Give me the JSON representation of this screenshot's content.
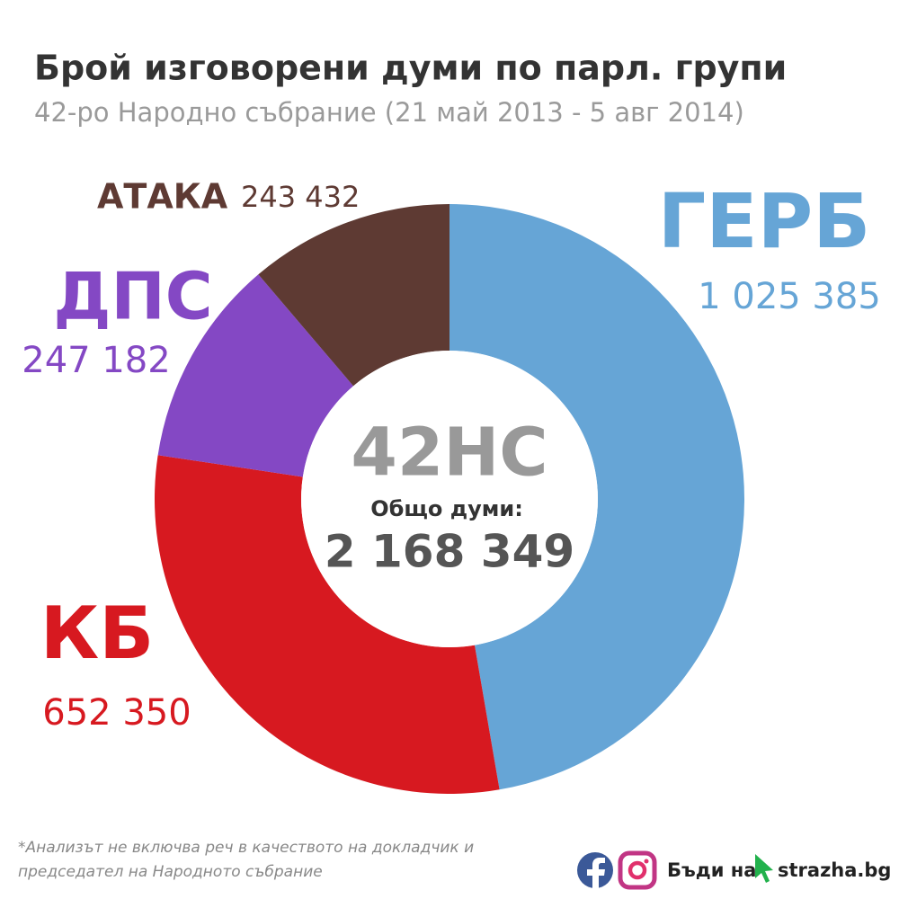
{
  "chart_data": {
    "type": "pie",
    "donut": true,
    "title": "Брой изговорени думи по парл. групи",
    "subtitle": "42-ро Народно събрание (21 май 2013 - 5 авг 2014)",
    "categories": [
      "ГЕРБ",
      "КБ",
      "ДПС",
      "АТАКА"
    ],
    "values": [
      1025385,
      652350,
      247182,
      243432
    ],
    "value_labels": [
      "1 025 385",
      "652 350",
      "247 182",
      "243 432"
    ],
    "colors": [
      "#66a5d6",
      "#d71920",
      "#8448c4",
      "#5e3a33"
    ],
    "center_title": "42НС",
    "center_caption": "Общо думи:",
    "total": {
      "value": 2168349,
      "label": "2 168 349"
    },
    "footnote": [
      "*Анализът не включва реч в качеството на докладчик и",
      "председател на Народното събрание"
    ],
    "brand": [
      "Бъди на",
      "strazha.bg"
    ]
  }
}
